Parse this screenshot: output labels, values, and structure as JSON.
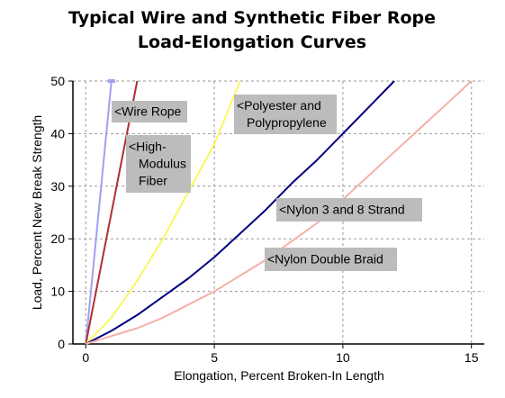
{
  "chart_data": {
    "type": "line",
    "title_lines": [
      "Typical Wire and Synthetic Fiber Rope",
      "Load-Elongation Curves"
    ],
    "xlabel": "Elongation, Percent Broken-In Length",
    "ylabel": "Load, Percent New Break Strength",
    "xlim": [
      -0.5,
      15.5
    ],
    "ylim": [
      0,
      50
    ],
    "xticks": [
      0,
      5,
      10,
      15
    ],
    "yticks": [
      0,
      10,
      20,
      30,
      40,
      50
    ],
    "grid": true,
    "series": [
      {
        "color": "#a0a0f0",
        "points": [
          [
            0,
            0
          ],
          [
            1,
            50
          ]
        ]
      },
      {
        "color": "#b03030",
        "points": [
          [
            0,
            0
          ],
          [
            2,
            50
          ]
        ]
      },
      {
        "color": "#f8f860",
        "points": [
          [
            0,
            0
          ],
          [
            1,
            5
          ],
          [
            2,
            12
          ],
          [
            3,
            20
          ],
          [
            4,
            29
          ],
          [
            5,
            38
          ],
          [
            6,
            50
          ]
        ]
      },
      {
        "color": "#000080",
        "points": [
          [
            0,
            0
          ],
          [
            1,
            2.5
          ],
          [
            2,
            5.5
          ],
          [
            3,
            9
          ],
          [
            4,
            12.5
          ],
          [
            5,
            16.5
          ],
          [
            6,
            21
          ],
          [
            7,
            25.5
          ],
          [
            8,
            30.5
          ],
          [
            9,
            35
          ],
          [
            10,
            40
          ],
          [
            11,
            45
          ],
          [
            12,
            50
          ]
        ]
      },
      {
        "color": "#f4b0a8",
        "points": [
          [
            0,
            0
          ],
          [
            1,
            1.5
          ],
          [
            2,
            3
          ],
          [
            3,
            5
          ],
          [
            4,
            7.5
          ],
          [
            5,
            10
          ],
          [
            6,
            13
          ],
          [
            7,
            16
          ],
          [
            8,
            19.5
          ],
          [
            9,
            23
          ],
          [
            10,
            27.5
          ],
          [
            11,
            32
          ],
          [
            12,
            36.5
          ],
          [
            13,
            41
          ],
          [
            14,
            45.5
          ],
          [
            15,
            50
          ]
        ]
      }
    ],
    "annotations": [
      {
        "name": "annotation-wire-rope",
        "lines": [
          "<Wire Rope"
        ]
      },
      {
        "name": "annotation-high-modulus",
        "lines": [
          "<High-",
          "Modulus",
          "Fiber"
        ]
      },
      {
        "name": "annotation-polyester",
        "lines": [
          "<Polyester and",
          "Polypropylene"
        ]
      },
      {
        "name": "annotation-nylon-strand",
        "lines": [
          "<Nylon 3 and 8 Strand"
        ]
      },
      {
        "name": "annotation-nylon-braid",
        "lines": [
          "<Nylon Double Braid"
        ]
      }
    ]
  }
}
